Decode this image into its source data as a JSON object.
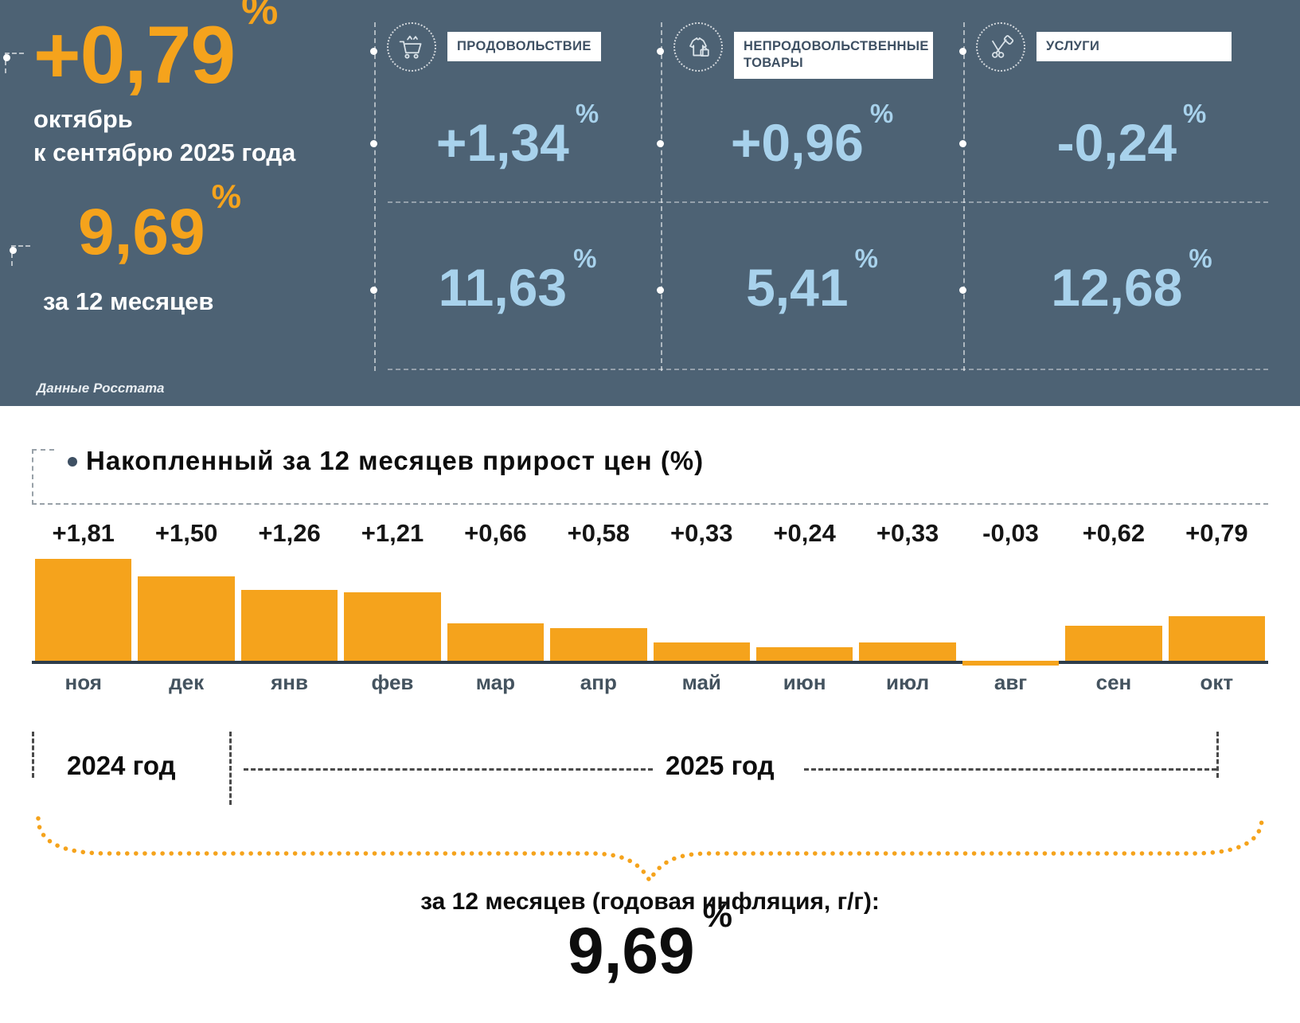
{
  "colors": {
    "header_bg": "#4D6274",
    "orange": "#F5A31C",
    "light_blue": "#A8D2EC",
    "chip_text": "#3E5063",
    "axis": "#2E3D4A"
  },
  "header": {
    "percent_sign": "%",
    "monthly": {
      "value": "+0,79",
      "caption_line1": "октябрь",
      "caption_line2": "к сентябрю 2025 года"
    },
    "annual": {
      "value": "9,69",
      "caption": "за 12 месяцев"
    },
    "source": "Данные Росстата",
    "categories": [
      {
        "label": "ПРОДОВОЛЬСТВИЕ",
        "monthly": "+1,34",
        "annual": "11,63",
        "icon": "cart-icon"
      },
      {
        "label": "НЕПРОДОВОЛЬСТВЕННЫЕ ТОВАРЫ",
        "monthly": "+0,96",
        "annual": "5,41",
        "icon": "clothes-bag-icon"
      },
      {
        "label": "УСЛУГИ",
        "monthly": "-0,24",
        "annual": "12,68",
        "icon": "scissors-comb-icon"
      }
    ]
  },
  "chart_data": {
    "type": "bar",
    "title": "Накопленный за 12 месяцев прирост цен (%)",
    "categories": [
      "ноя",
      "дек",
      "янв",
      "фев",
      "мар",
      "апр",
      "май",
      "июн",
      "июл",
      "авг",
      "сен",
      "окт"
    ],
    "values": [
      1.81,
      1.5,
      1.26,
      1.21,
      0.66,
      0.58,
      0.33,
      0.24,
      0.33,
      -0.03,
      0.62,
      0.79
    ],
    "value_labels": [
      "+1,81",
      "+1,50",
      "+1,26",
      "+1,21",
      "+0,66",
      "+0,58",
      "+0,33",
      "+0,24",
      "+0,33",
      "-0,03",
      "+0,62",
      "+0,79"
    ],
    "bar_color": "#F5A31C",
    "ylim": [
      -0.1,
      1.9
    ],
    "grid": false,
    "legend": "none",
    "year_groups": [
      {
        "label": "2024 год",
        "from": "ноя",
        "to": "дек"
      },
      {
        "label": "2025 год",
        "from": "янв",
        "to": "окт"
      }
    ]
  },
  "footer": {
    "brace_caption": "за 12 месяцев (годовая инфляция, г/г):",
    "total_value": "9,69",
    "percent_sign": "%"
  }
}
